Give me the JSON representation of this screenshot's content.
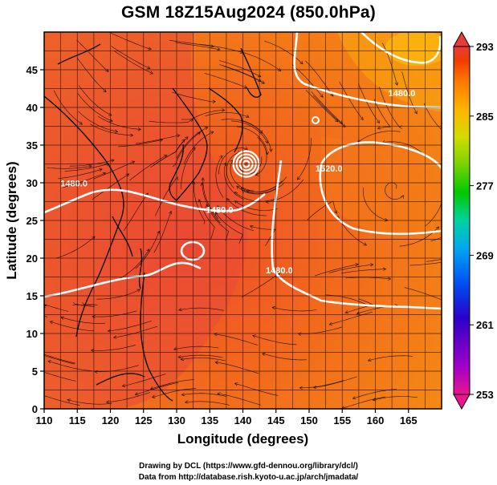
{
  "title": "GSM 18Z15Aug2024 (850.0hPa)",
  "x_axis": {
    "label": "Longitude (degrees)",
    "min": 110,
    "max": 170,
    "ticks": [
      "110",
      "115",
      "120",
      "125",
      "130",
      "135",
      "140",
      "145",
      "150",
      "155",
      "160",
      "165"
    ]
  },
  "y_axis": {
    "label": "Latitude  (degrees)",
    "min": 0,
    "max": 50,
    "ticks": [
      "0",
      "5",
      "10",
      "15",
      "20",
      "25",
      "30",
      "35",
      "40",
      "45"
    ]
  },
  "colorbar": {
    "min": 253,
    "max": 293,
    "labels": [
      "293",
      "285",
      "277",
      "269",
      "261",
      "253"
    ],
    "colors": [
      "#e8168f",
      "#a000c8",
      "#2a00c8",
      "#0050f0",
      "#00a8f0",
      "#00d2a0",
      "#00c800",
      "#78d200",
      "#d2dc00",
      "#ffb400",
      "#ff7800",
      "#f03c00",
      "#e63c3c"
    ]
  },
  "contours": {
    "labels": [
      {
        "text": "1480.0",
        "lon": 114.5,
        "lat": 29.5
      },
      {
        "text": "1480.0",
        "lon": 136.5,
        "lat": 26.0
      },
      {
        "text": "1480.0",
        "lon": 164.0,
        "lat": 41.5
      },
      {
        "text": "1520.0",
        "lon": 153.0,
        "lat": 31.5
      },
      {
        "text": "1480.0",
        "lon": 145.5,
        "lat": 18.0
      }
    ],
    "typhoon_center": {
      "lon": 140.5,
      "lat": 32.5
    }
  },
  "credits": {
    "line1": "Drawing by DCL (https://www.gfd-dennou.org/library/dcl/)",
    "line2": "Data from http://database.rish.kyoto-u.ac.jp/arch/jmadata/"
  }
}
